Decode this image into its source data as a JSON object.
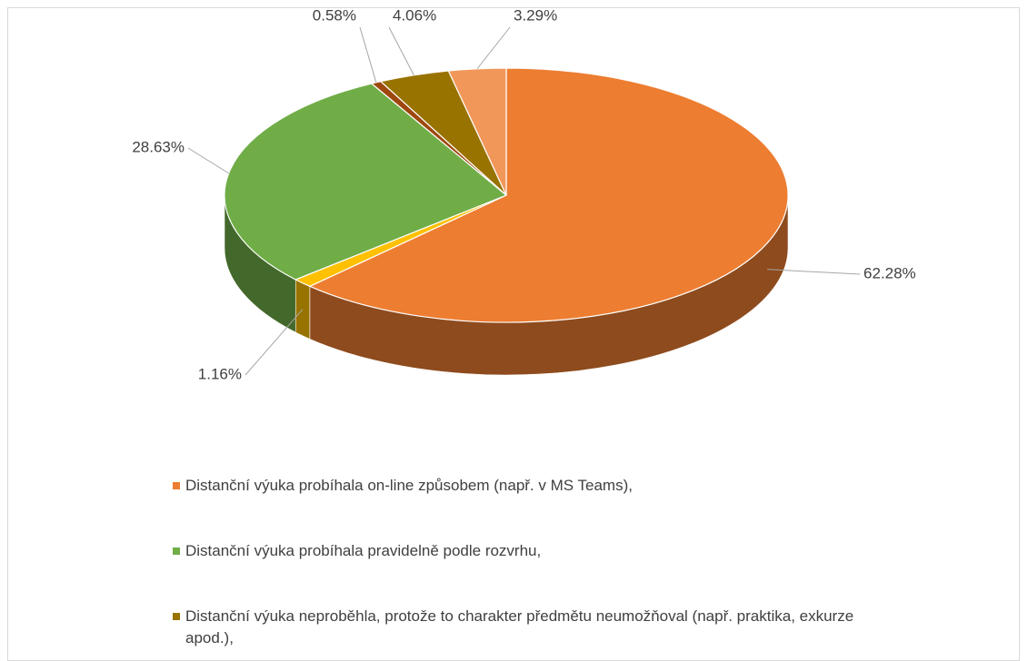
{
  "chart_data": {
    "type": "pie",
    "style": "3d",
    "categories": [
      "Distanční výuka probíhala on-line způsobem (např. v MS Teams),",
      null,
      "Distanční výuka probíhala pravidelně podle rozvrhu,",
      null,
      "Distanční výuka neproběhla, protože to charakter předmětu neumožňoval (např. praktika, exkurze apod.),",
      null
    ],
    "values": [
      62.28,
      1.16,
      28.63,
      0.58,
      4.06,
      3.29
    ],
    "value_labels": [
      "62.28%",
      "1.16%",
      "28.63%",
      "0.58%",
      "4.06%",
      "3.29%"
    ],
    "colors": [
      "#ED7D31",
      "#FFC000",
      "#70AD47",
      "#9E480E",
      "#997300",
      "#F1975A"
    ],
    "legend": "bottom"
  }
}
